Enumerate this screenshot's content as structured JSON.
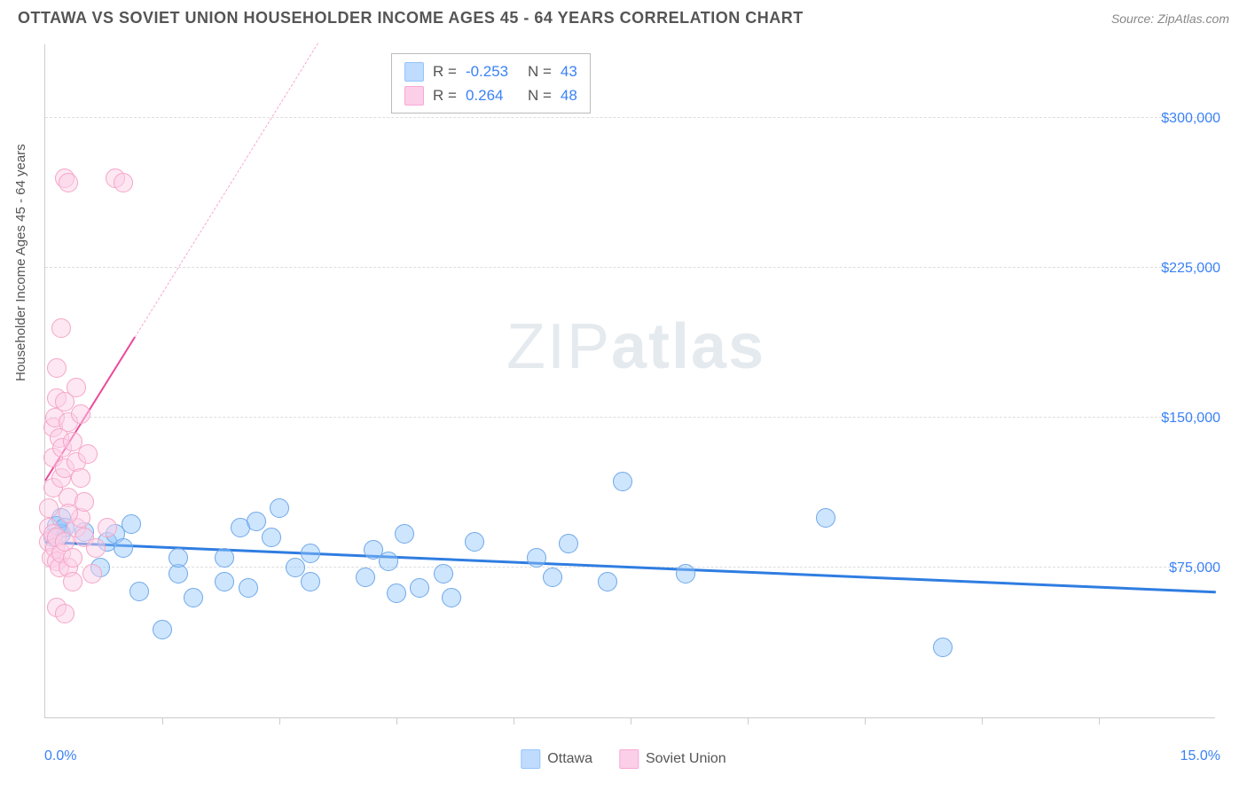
{
  "header": {
    "title": "OTTAWA VS SOVIET UNION HOUSEHOLDER INCOME AGES 45 - 64 YEARS CORRELATION CHART",
    "source": "Source: ZipAtlas.com"
  },
  "watermark": {
    "light": "ZIP",
    "bold": "atlas"
  },
  "chart": {
    "type": "scatter",
    "background_color": "#ffffff",
    "grid_color": "#dddddd",
    "axis_color": "#cccccc",
    "y_axis_title": "Householder Income Ages 45 - 64 years",
    "xlim": [
      0,
      15
    ],
    "ylim": [
      0,
      337500
    ],
    "x_min_label": "0.0%",
    "x_max_label": "15.0%",
    "x_tick_positions": [
      1.5,
      3.0,
      4.5,
      6.0,
      7.5,
      9.0,
      10.5,
      12.0,
      13.5
    ],
    "y_ticks": [
      {
        "value": 75000,
        "label": "$75,000"
      },
      {
        "value": 150000,
        "label": "$150,000"
      },
      {
        "value": 225000,
        "label": "$225,000"
      },
      {
        "value": 300000,
        "label": "$300,000"
      }
    ],
    "point_radius": 11,
    "point_stroke_width": 1.5,
    "series": [
      {
        "name": "Ottawa",
        "fill": "rgba(147,197,253,0.45)",
        "stroke": "#6ea8e8",
        "swatch_fill": "#bfdbfe",
        "swatch_border": "#93c5fd",
        "trend": {
          "x1": 0,
          "y1": 87000,
          "x2": 15,
          "y2": 62000,
          "color": "#2f7de1",
          "width": 3,
          "dashed": false
        },
        "stats": {
          "r": "-0.253",
          "n": "43"
        },
        "points": [
          [
            0.1,
            90000
          ],
          [
            0.15,
            96000
          ],
          [
            0.2,
            92000
          ],
          [
            0.2,
            100000
          ],
          [
            0.25,
            95000
          ],
          [
            0.7,
            75000
          ],
          [
            0.8,
            88000
          ],
          [
            0.9,
            92000
          ],
          [
            1.0,
            85000
          ],
          [
            1.1,
            97000
          ],
          [
            1.2,
            63000
          ],
          [
            1.5,
            44000
          ],
          [
            1.7,
            72000
          ],
          [
            1.7,
            80000
          ],
          [
            1.9,
            60000
          ],
          [
            2.3,
            80000
          ],
          [
            2.3,
            68000
          ],
          [
            2.5,
            95000
          ],
          [
            2.6,
            65000
          ],
          [
            2.7,
            98000
          ],
          [
            2.9,
            90000
          ],
          [
            3.0,
            105000
          ],
          [
            3.2,
            75000
          ],
          [
            3.4,
            68000
          ],
          [
            3.4,
            82000
          ],
          [
            4.1,
            70000
          ],
          [
            4.2,
            84000
          ],
          [
            4.4,
            78000
          ],
          [
            4.5,
            62000
          ],
          [
            4.6,
            92000
          ],
          [
            4.8,
            65000
          ],
          [
            5.1,
            72000
          ],
          [
            5.2,
            60000
          ],
          [
            5.5,
            88000
          ],
          [
            6.3,
            80000
          ],
          [
            6.5,
            70000
          ],
          [
            6.7,
            87000
          ],
          [
            7.2,
            68000
          ],
          [
            7.4,
            118000
          ],
          [
            8.2,
            72000
          ],
          [
            10.0,
            100000
          ],
          [
            11.5,
            35000
          ],
          [
            0.5,
            93000
          ]
        ]
      },
      {
        "name": "Soviet Union",
        "fill": "rgba(251,207,232,0.50)",
        "stroke": "#f5a5c5",
        "swatch_fill": "#fbcfe8",
        "swatch_border": "#f9a8d4",
        "trend": {
          "x1": 0,
          "y1": 118000,
          "x2": 1.15,
          "y2": 190000,
          "color": "#ec4899",
          "width": 2.5,
          "dashed": false
        },
        "trend_ext": {
          "x1": 1.15,
          "y1": 190000,
          "x2": 3.5,
          "y2": 337500,
          "color": "#f9a8d4",
          "width": 1.5,
          "dashed": true
        },
        "stats": {
          "r": "0.264",
          "n": "48"
        },
        "points": [
          [
            0.05,
            95000
          ],
          [
            0.05,
            105000
          ],
          [
            0.1,
            115000
          ],
          [
            0.1,
            130000
          ],
          [
            0.1,
            145000
          ],
          [
            0.12,
            150000
          ],
          [
            0.15,
            160000
          ],
          [
            0.15,
            175000
          ],
          [
            0.18,
            140000
          ],
          [
            0.2,
            195000
          ],
          [
            0.2,
            120000
          ],
          [
            0.22,
            135000
          ],
          [
            0.25,
            158000
          ],
          [
            0.25,
            125000
          ],
          [
            0.3,
            148000
          ],
          [
            0.3,
            110000
          ],
          [
            0.35,
            138000
          ],
          [
            0.4,
            128000
          ],
          [
            0.4,
            165000
          ],
          [
            0.45,
            152000
          ],
          [
            0.25,
            270000
          ],
          [
            0.3,
            268000
          ],
          [
            0.9,
            270000
          ],
          [
            1.0,
            268000
          ],
          [
            0.05,
            88000
          ],
          [
            0.08,
            80000
          ],
          [
            0.1,
            92000
          ],
          [
            0.12,
            85000
          ],
          [
            0.15,
            90000
          ],
          [
            0.15,
            78000
          ],
          [
            0.18,
            75000
          ],
          [
            0.2,
            82000
          ],
          [
            0.25,
            88000
          ],
          [
            0.3,
            75000
          ],
          [
            0.35,
            68000
          ],
          [
            0.35,
            80000
          ],
          [
            0.4,
            95000
          ],
          [
            0.45,
            100000
          ],
          [
            0.5,
            90000
          ],
          [
            0.5,
            108000
          ],
          [
            0.6,
            72000
          ],
          [
            0.65,
            85000
          ],
          [
            0.15,
            55000
          ],
          [
            0.25,
            52000
          ],
          [
            0.45,
            120000
          ],
          [
            0.55,
            132000
          ],
          [
            0.3,
            102000
          ],
          [
            0.8,
            95000
          ]
        ]
      }
    ]
  },
  "stats_box": {
    "r_label": "R =",
    "n_label": "N ="
  }
}
